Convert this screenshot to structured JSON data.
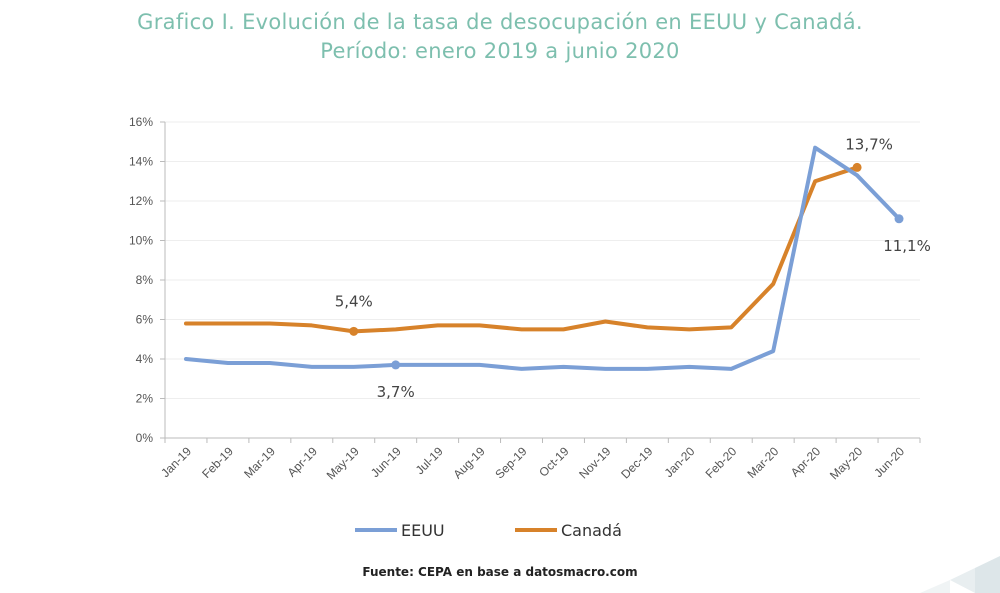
{
  "title_line1": "Grafico I. Evolución de la tasa de desocupación en EEUU y Canadá.",
  "title_line2": "Período: enero 2019 a junio 2020",
  "source": "Fuente: CEPA en base a datosmacro.com",
  "chart_data": {
    "type": "line",
    "title": "Grafico I. Evolución de la tasa de desocupación en EEUU y Canadá. Período: enero 2019 a junio 2020",
    "xlabel": "",
    "ylabel": "",
    "ylim": [
      0,
      16
    ],
    "yticks": [
      "0%",
      "2%",
      "4%",
      "6%",
      "8%",
      "10%",
      "12%",
      "14%",
      "16%"
    ],
    "ytick_values": [
      0,
      2,
      4,
      6,
      8,
      10,
      12,
      14,
      16
    ],
    "grid": true,
    "legend_position": "bottom",
    "categories": [
      "Jan-19",
      "Feb-19",
      "Mar-19",
      "Apr-19",
      "May-19",
      "Jun-19",
      "Jul-19",
      "Aug-19",
      "Sep-19",
      "Oct-19",
      "Nov-19",
      "Dec-19",
      "Jan-20",
      "Feb-20",
      "Mar-20",
      "Apr-20",
      "May-20",
      "Jun-20"
    ],
    "series": [
      {
        "name": "EEUU",
        "color": "#7b9fd6",
        "values": [
          4.0,
          3.8,
          3.8,
          3.6,
          3.6,
          3.7,
          3.7,
          3.7,
          3.5,
          3.6,
          3.5,
          3.5,
          3.6,
          3.5,
          4.4,
          14.7,
          13.3,
          11.1
        ]
      },
      {
        "name": "Canadá",
        "color": "#d7822a",
        "values": [
          5.8,
          5.8,
          5.8,
          5.7,
          5.4,
          5.5,
          5.7,
          5.7,
          5.5,
          5.5,
          5.9,
          5.6,
          5.5,
          5.6,
          7.8,
          13.0,
          13.7,
          null
        ]
      }
    ],
    "annotations": [
      {
        "series": "Canadá",
        "category": "May-19",
        "text": "5,4%",
        "pos": "above"
      },
      {
        "series": "EEUU",
        "category": "Jun-19",
        "text": "3,7%",
        "pos": "below"
      },
      {
        "series": "Canadá",
        "category": "May-20",
        "text": "13,7%",
        "pos": "above"
      },
      {
        "series": "EEUU",
        "category": "Jun-20",
        "text": "11,1%",
        "pos": "below"
      }
    ]
  }
}
